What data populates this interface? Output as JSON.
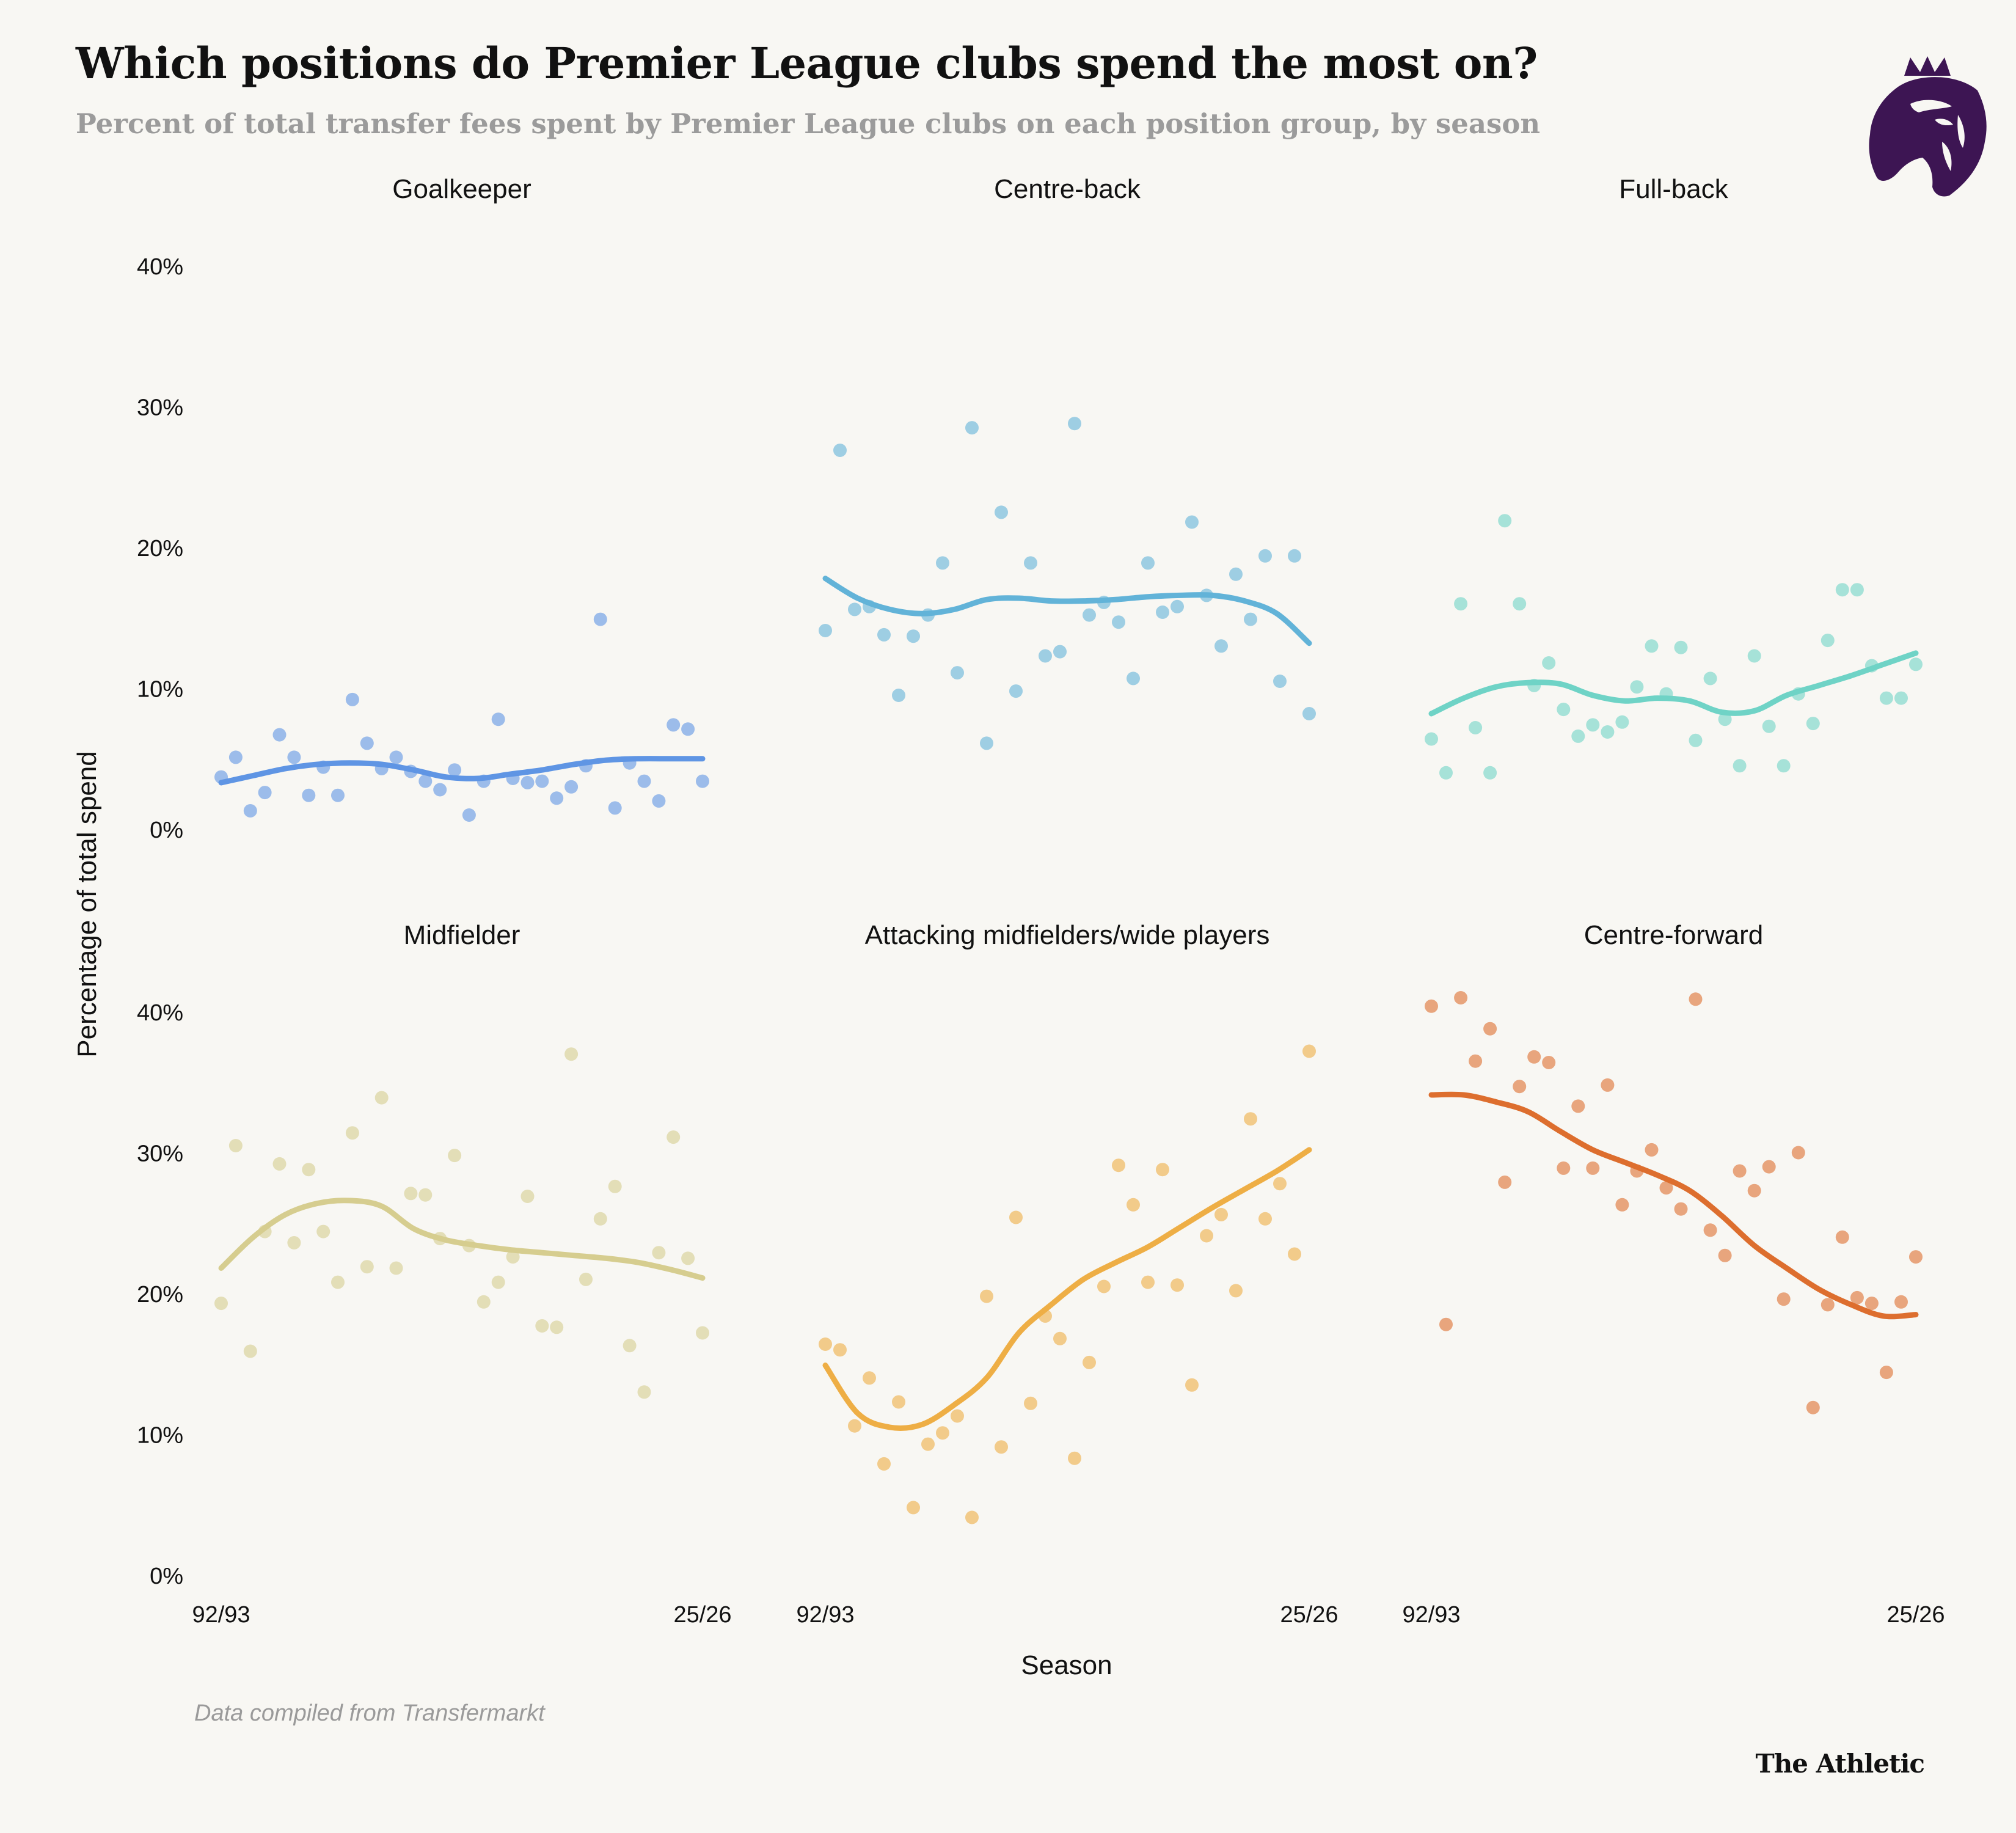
{
  "title": "Which positions do Premier League clubs spend the most on?",
  "subtitle": "Percent of total transfer fees spent by Premier League clubs on each position group, by season",
  "source_note": "Data compiled from Transfermarkt",
  "brand": "The Athletic",
  "logo_icon": "premier-league-lion-icon",
  "chart_data": {
    "type": "scatter",
    "ylabel": "Percentage of total spend",
    "xlabel": "Season",
    "ylim": [
      0,
      40
    ],
    "y_ticks": [
      "0%",
      "10%",
      "20%",
      "30%",
      "40%"
    ],
    "x_ticks": [
      "92/93",
      "25/26"
    ],
    "x_range": [
      "92/93",
      "25/26"
    ],
    "legend": "none",
    "grid": false,
    "trend": "smoothed line",
    "panels": [
      {
        "name": "Goalkeeper",
        "color": "#5f95e4",
        "values": [
          3.7,
          5.1,
          1.3,
          2.6,
          6.7,
          5.1,
          2.4,
          4.4,
          2.4,
          9.2,
          6.1,
          4.3,
          5.1,
          4.1,
          3.4,
          2.8,
          4.2,
          1.0,
          3.4,
          7.8,
          3.6,
          3.3,
          3.4,
          2.2,
          3.0,
          4.5,
          14.9,
          1.5,
          4.7,
          3.4,
          2.0,
          7.4,
          7.1,
          3.4
        ],
        "trend": [
          3.3,
          3.8,
          4.3,
          4.6,
          4.7,
          4.6,
          4.2,
          3.7,
          3.6,
          3.9,
          4.2,
          4.6,
          4.9,
          5.0,
          5.0,
          5.0
        ]
      },
      {
        "name": "Centre-back",
        "color": "#62b3d8",
        "values": [
          14.1,
          26.9,
          15.6,
          15.8,
          13.8,
          9.5,
          13.7,
          15.2,
          18.9,
          11.1,
          28.5,
          6.1,
          22.5,
          9.8,
          18.9,
          12.3,
          12.6,
          28.8,
          15.2,
          16.1,
          14.7,
          10.7,
          18.9,
          15.4,
          15.8,
          21.8,
          16.6,
          13.0,
          18.1,
          14.9,
          19.4,
          10.5,
          19.4,
          8.2
        ],
        "trend": [
          17.8,
          16.4,
          15.6,
          15.3,
          15.6,
          16.3,
          16.4,
          16.2,
          16.2,
          16.3,
          16.5,
          16.6,
          16.6,
          16.2,
          15.3,
          13.2
        ]
      },
      {
        "name": "Full-back",
        "color": "#6fd3c6",
        "values": [
          6.4,
          4.0,
          16.0,
          7.2,
          4.0,
          21.9,
          16.0,
          10.2,
          11.8,
          8.5,
          6.6,
          7.4,
          6.9,
          7.6,
          10.1,
          13.0,
          9.6,
          12.9,
          6.3,
          10.7,
          7.8,
          4.5,
          12.3,
          7.3,
          4.5,
          9.6,
          7.5,
          13.4,
          17.0,
          17.0,
          11.6,
          9.3,
          9.3,
          11.7
        ],
        "trend": [
          8.2,
          9.3,
          10.1,
          10.4,
          10.3,
          9.5,
          9.1,
          9.3,
          9.1,
          8.3,
          8.4,
          9.5,
          10.2,
          10.9,
          11.7,
          12.5
        ]
      },
      {
        "name": "Midfielder",
        "color": "#d6cd8f",
        "values": [
          19.3,
          30.5,
          15.9,
          24.4,
          29.2,
          23.6,
          28.8,
          24.4,
          20.8,
          31.4,
          21.9,
          33.9,
          21.8,
          27.1,
          27.0,
          23.9,
          29.8,
          23.4,
          19.4,
          20.8,
          22.6,
          26.9,
          17.7,
          17.6,
          37.0,
          21.0,
          25.3,
          27.6,
          16.3,
          13.0,
          22.9,
          31.1,
          22.5,
          17.2
        ],
        "trend": [
          21.8,
          24.0,
          25.6,
          26.4,
          26.6,
          26.2,
          24.6,
          23.8,
          23.4,
          23.1,
          22.9,
          22.7,
          22.5,
          22.2,
          21.7,
          21.1
        ]
      },
      {
        "name": "Attacking midfielders/wide players",
        "color": "#eeae45",
        "values": [
          16.4,
          16.0,
          10.6,
          14.0,
          7.9,
          12.3,
          4.8,
          9.3,
          10.1,
          11.3,
          4.1,
          19.8,
          9.1,
          25.4,
          12.2,
          18.4,
          16.8,
          8.3,
          15.1,
          20.5,
          29.1,
          26.3,
          20.8,
          28.8,
          20.6,
          13.5,
          24.1,
          25.6,
          20.2,
          32.4,
          25.3,
          27.8,
          22.8,
          37.2
        ],
        "trend": [
          14.9,
          11.5,
          10.5,
          10.7,
          12.1,
          14.0,
          17.2,
          19.2,
          21.0,
          22.2,
          23.3,
          24.7,
          26.1,
          27.4,
          28.7,
          30.2
        ]
      },
      {
        "name": "Centre-forward",
        "color": "#dd6e2e",
        "values": [
          40.4,
          17.8,
          41.0,
          36.5,
          38.8,
          27.9,
          34.7,
          36.8,
          36.4,
          28.9,
          33.3,
          28.9,
          34.8,
          26.3,
          28.7,
          30.2,
          27.5,
          26.0,
          40.9,
          24.5,
          22.7,
          28.7,
          27.3,
          29.0,
          19.6,
          30.0,
          11.9,
          19.2,
          24.0,
          19.7,
          19.3,
          14.4,
          19.4,
          22.6
        ],
        "trend": [
          34.1,
          34.1,
          33.6,
          32.9,
          31.5,
          30.2,
          29.3,
          28.4,
          27.3,
          25.5,
          23.4,
          21.8,
          20.3,
          19.2,
          18.4,
          18.5
        ]
      }
    ]
  }
}
